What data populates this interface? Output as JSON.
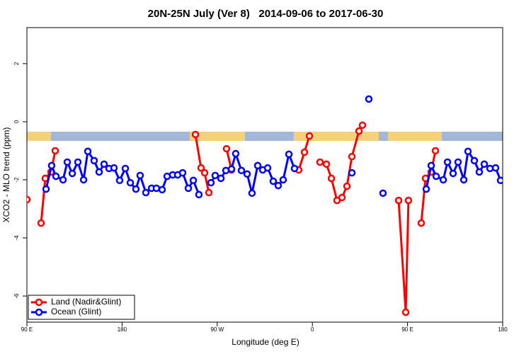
{
  "chart_data": {
    "type": "line",
    "title": "20N-25N July (Ver 8)   2014-09-06 to 2017-06-30",
    "xlabel": "Longitude (deg E)",
    "ylabel": "XCO2 - MLO trend (ppm)",
    "xlim": [
      90,
      540
    ],
    "ylim": [
      -6.9,
      3.24
    ],
    "xticks": [
      {
        "value": 90,
        "label": "90 E"
      },
      180,
      {
        "value": 270,
        "label": "90 W"
      },
      {
        "value": 360,
        "label": "0"
      },
      {
        "value": 450,
        "label": "90 E"
      },
      {
        "value": 540,
        "label": "180"
      }
    ],
    "yticks": [
      -6,
      -4,
      -2,
      0,
      2
    ],
    "legend": "bottom-left",
    "series": [
      {
        "name": "Land (Nadir&Glint)",
        "color": "#ff0000",
        "x": [
          90,
          null,
          103.4,
          107.4,
          112.8,
          116.8,
          null,
          249.4,
          254.7,
          258.1,
          262.1,
          null,
          278.8,
          283.5,
          null,
          347.1,
          352.5,
          357.2,
          null,
          367.2,
          373.3,
          378.0,
          383.3,
          388.0,
          392.7,
          397.4,
          404.1,
          407.4,
          null,
          441.6,
          448.3,
          450.9,
          null,
          463.0,
          467.0,
          472.4,
          476.4
        ],
        "values": [
          -2.68,
          null,
          -3.49,
          -1.95,
          -1.73,
          -1.0,
          null,
          -0.44,
          -1.59,
          -1.76,
          -2.44,
          null,
          -0.93,
          -1.66,
          null,
          -1.66,
          -1.05,
          -0.49,
          null,
          -1.39,
          -1.46,
          -1.95,
          -2.71,
          -2.61,
          -2.22,
          -1.2,
          -0.32,
          -0.12,
          null,
          -2.71,
          -6.56,
          -2.71,
          null,
          -3.49,
          -1.95,
          -1.73,
          -1.0
        ]
      },
      {
        "name": "Ocean (Glint)",
        "color": "#0000ff",
        "x": [
          108.1,
          113.4,
          117.5,
          124.2,
          128.2,
          132.9,
          138.2,
          143.6,
          147.6,
          153.6,
          158.3,
          163.0,
          167.7,
          172.4,
          177.7,
          183.1,
          187.8,
          193.1,
          197.1,
          202.5,
          207.9,
          212.5,
          217.9,
          222.6,
          227.9,
          232.6,
          237.3,
          242.7,
          247.4,
          252.7,
          null,
          264.1,
          268.1,
          273.5,
          278.2,
          283.5,
          287.5,
          292.9,
          298.3,
          302.9,
          308.3,
          313.0,
          317.7,
          323.0,
          327.7,
          332.4,
          337.8,
          343.1,
          null,
          397.4,
          null,
          413.4,
          null,
          426.8,
          null,
          467.7,
          472.4,
          477.1,
          483.8,
          487.8,
          493.1,
          497.8,
          503.2,
          507.2,
          513.2,
          517.9,
          522.6,
          528.0,
          533.3,
          538.0
        ],
        "values": [
          -2.32,
          -1.51,
          -1.88,
          -2.0,
          -1.39,
          -1.78,
          -1.39,
          -2.0,
          -1.02,
          -1.34,
          -1.73,
          -1.46,
          -1.61,
          -1.59,
          -2.02,
          -1.61,
          -2.1,
          -2.32,
          -1.85,
          -2.44,
          -2.29,
          -2.29,
          -2.34,
          -1.88,
          -1.83,
          -1.83,
          -1.76,
          -2.29,
          -2.02,
          -2.51,
          null,
          -2.1,
          -1.85,
          -1.95,
          -1.68,
          -1.63,
          -1.1,
          -1.68,
          -1.8,
          -2.46,
          -1.51,
          -1.66,
          -1.59,
          -2.05,
          -2.2,
          -2.0,
          -1.12,
          -1.61,
          null,
          -1.76,
          null,
          0.78,
          null,
          -2.46,
          null,
          -2.32,
          -1.51,
          -1.88,
          -2.0,
          -1.39,
          -1.78,
          -1.39,
          -2.0,
          -1.02,
          -1.34,
          -1.73,
          -1.46,
          -1.61,
          -1.59,
          -2.02
        ]
      }
    ]
  }
}
